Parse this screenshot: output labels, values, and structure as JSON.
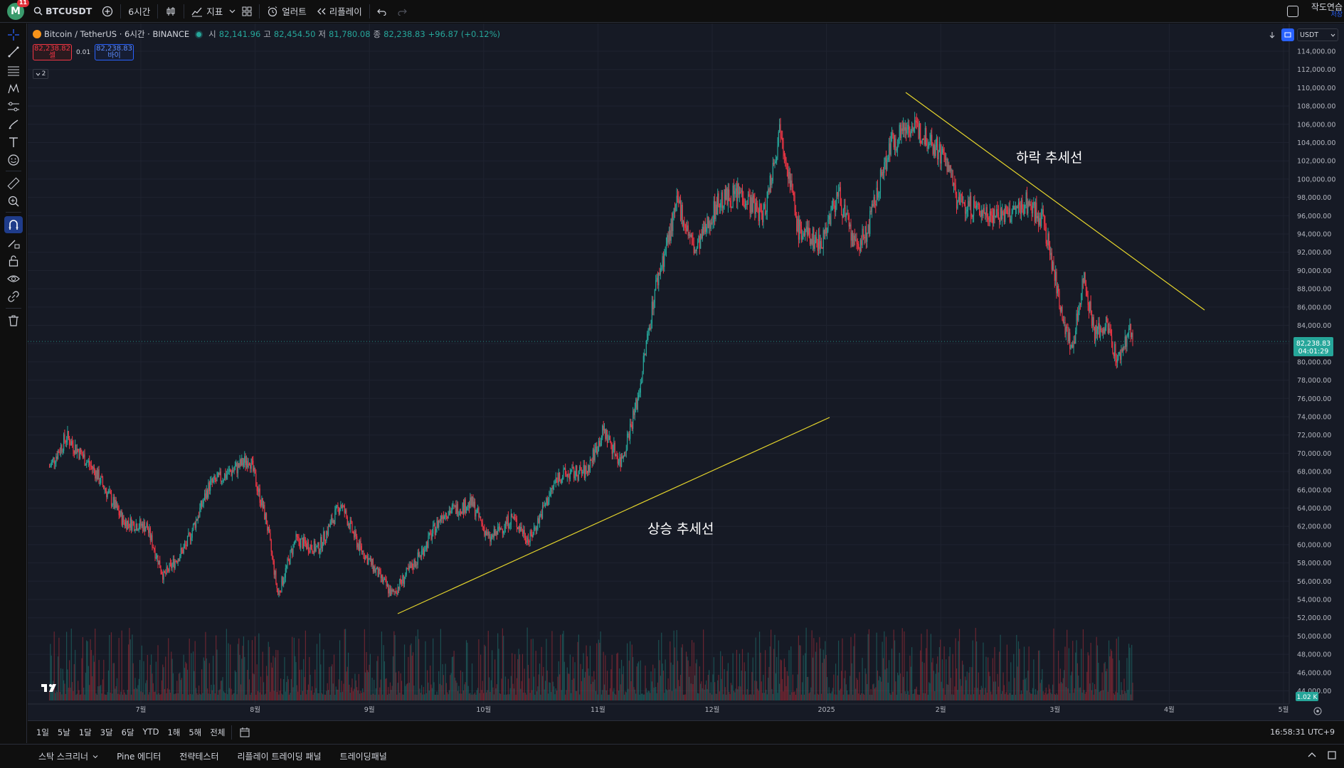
{
  "header": {
    "avatar_letter": "M",
    "notification_count": "11",
    "symbol": "BTCUSDT",
    "interval": "6시간",
    "indicators_label": "지표",
    "alert_label": "얼러트",
    "replay_label": "리플레이",
    "layout_title": "작도연습",
    "layout_save": "저장"
  },
  "legend": {
    "title": "Bitcoin / TetherUS · 6시간 · BINANCE",
    "open_key": "시",
    "open_val": "82,141.96",
    "high_key": "고",
    "high_val": "82,454.50",
    "low_key": "저",
    "low_val": "81,780.08",
    "close_key": "종",
    "close_val": "82,238.83",
    "change": "+96.87 (+0.12%)",
    "sell_price": "82,238.82",
    "sell_label": "셀",
    "spread": "0.01",
    "buy_price": "82,238.83",
    "buy_label": "바이",
    "collapse_count": "2"
  },
  "chart_controls": {
    "currency": "USDT"
  },
  "chart_data": {
    "type": "candlestick",
    "symbol": "BTCUSDT",
    "exchange": "BINANCE",
    "interval": "6시간",
    "y_axis": {
      "min": 44000,
      "max": 114000,
      "step": 2000,
      "tick_labels": [
        "114,000.00",
        "112,000.00",
        "110,000.00",
        "108,000.00",
        "106,000.00",
        "104,000.00",
        "102,000.00",
        "100,000.00",
        "98,000.00",
        "96,000.00",
        "94,000.00",
        "92,000.00",
        "90,000.00",
        "88,000.00",
        "86,000.00",
        "84,000.00",
        "82,000.00",
        "80,000.00",
        "78,000.00",
        "76,000.00",
        "74,000.00",
        "72,000.00",
        "70,000.00",
        "68,000.00",
        "66,000.00",
        "64,000.00",
        "62,000.00",
        "60,000.00",
        "58,000.00",
        "56,000.00",
        "54,000.00",
        "52,000.00",
        "50,000.00",
        "48,000.00",
        "46,000.00",
        "44,000.00"
      ]
    },
    "x_axis": {
      "tick_labels": [
        "7월",
        "8월",
        "9월",
        "10월",
        "11월",
        "12월",
        "2025",
        "2월",
        "3월",
        "4월",
        "5월"
      ]
    },
    "price_path": [
      {
        "month": 6.2,
        "price": 68500
      },
      {
        "month": 6.35,
        "price": 71800
      },
      {
        "month": 6.6,
        "price": 68000
      },
      {
        "month": 6.85,
        "price": 62500
      },
      {
        "month": 7.05,
        "price": 62000
      },
      {
        "month": 7.2,
        "price": 56500
      },
      {
        "month": 7.4,
        "price": 60000
      },
      {
        "month": 7.6,
        "price": 66500
      },
      {
        "month": 7.85,
        "price": 68500
      },
      {
        "month": 7.95,
        "price": 69500
      },
      {
        "month": 8.1,
        "price": 62500
      },
      {
        "month": 8.2,
        "price": 54500
      },
      {
        "month": 8.35,
        "price": 60500
      },
      {
        "month": 8.55,
        "price": 59500
      },
      {
        "month": 8.75,
        "price": 64500
      },
      {
        "month": 8.9,
        "price": 60000
      },
      {
        "month": 9.2,
        "price": 54500
      },
      {
        "month": 9.45,
        "price": 59000
      },
      {
        "month": 9.65,
        "price": 63500
      },
      {
        "month": 9.9,
        "price": 64500
      },
      {
        "month": 10.05,
        "price": 60500
      },
      {
        "month": 10.25,
        "price": 63000
      },
      {
        "month": 10.4,
        "price": 60500
      },
      {
        "month": 10.65,
        "price": 67500
      },
      {
        "month": 10.9,
        "price": 68000
      },
      {
        "month": 11.05,
        "price": 72500
      },
      {
        "month": 11.2,
        "price": 69000
      },
      {
        "month": 11.35,
        "price": 76000
      },
      {
        "month": 11.5,
        "price": 88000
      },
      {
        "month": 11.7,
        "price": 97500
      },
      {
        "month": 11.85,
        "price": 92000
      },
      {
        "month": 12.05,
        "price": 97500
      },
      {
        "month": 12.25,
        "price": 98500
      },
      {
        "month": 12.45,
        "price": 96000
      },
      {
        "month": 12.6,
        "price": 106000
      },
      {
        "month": 12.75,
        "price": 94500
      },
      {
        "month": 12.95,
        "price": 93000
      },
      {
        "month": 13.1,
        "price": 98500
      },
      {
        "month": 13.25,
        "price": 92500
      },
      {
        "month": 13.35,
        "price": 94000
      },
      {
        "month": 13.55,
        "price": 103500
      },
      {
        "month": 13.7,
        "price": 106000
      },
      {
        "month": 13.9,
        "price": 104500
      },
      {
        "month": 14.05,
        "price": 102000
      },
      {
        "month": 14.15,
        "price": 97500
      },
      {
        "month": 14.35,
        "price": 96500
      },
      {
        "month": 14.6,
        "price": 96000
      },
      {
        "month": 14.75,
        "price": 97500
      },
      {
        "month": 14.9,
        "price": 95500
      },
      {
        "month": 15.05,
        "price": 86000
      },
      {
        "month": 15.15,
        "price": 81000
      },
      {
        "month": 15.25,
        "price": 89500
      },
      {
        "month": 15.35,
        "price": 83000
      },
      {
        "month": 15.45,
        "price": 84000
      },
      {
        "month": 15.55,
        "price": 80000
      },
      {
        "month": 15.65,
        "price": 83500
      },
      {
        "month": 15.68,
        "price": 82238.83
      }
    ],
    "last_price": "82,238.83",
    "countdown": "04:01:29",
    "volume_label": "1.02 K"
  },
  "annotations": {
    "downtrend_label": "하락 추세선",
    "uptrend_label": "상승 추세선"
  },
  "period_bar": {
    "periods": [
      "1일",
      "5날",
      "1달",
      "3달",
      "6달",
      "YTD",
      "1해",
      "5해",
      "전체"
    ],
    "clock": "16:58:31 UTC+9"
  },
  "panel_bar": {
    "tabs": [
      "스탁 스크리너",
      "Pine 에디터",
      "전략테스터",
      "리플레이 트레이딩 패널",
      "트레이딩패널"
    ]
  },
  "colors": {
    "up": "#26a69a",
    "down": "#f23645",
    "trendline": "#e5d52c",
    "background": "#161a25",
    "accent": "#2962ff"
  }
}
